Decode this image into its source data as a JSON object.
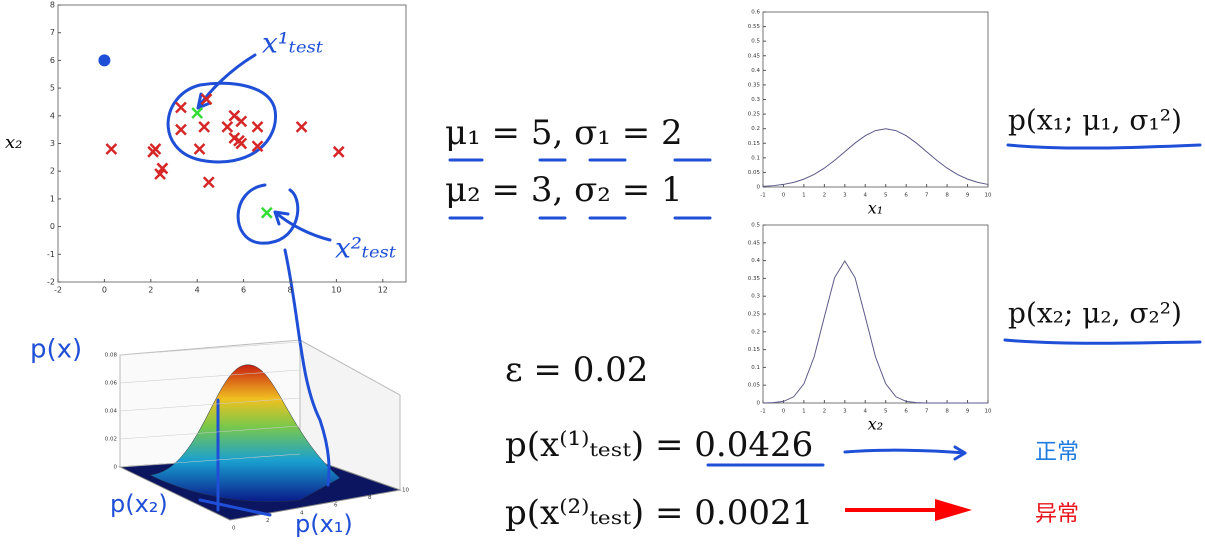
{
  "chart_data": [
    {
      "type": "scatter",
      "ylabel": "x₂",
      "xlim": [
        -2,
        13
      ],
      "ylim": [
        -2,
        8
      ],
      "xticks": [
        -2,
        0,
        2,
        4,
        6,
        8,
        10,
        12
      ],
      "yticks": [
        -2,
        -1,
        0,
        1,
        2,
        3,
        4,
        5,
        6,
        7,
        8
      ],
      "series": [
        {
          "color": "#d62728",
          "marker": "x",
          "x": [
            3.3,
            4.4,
            3.3,
            4.3,
            5.3,
            5.6,
            5.9,
            6.6,
            5.6,
            5.8,
            6.6,
            5.9,
            4.1,
            2.1,
            2.2,
            2.5,
            2.4,
            4.5,
            0.3,
            8.5,
            10.1
          ],
          "y": [
            4.3,
            4.6,
            3.5,
            3.6,
            3.6,
            4.0,
            3.8,
            3.6,
            3.2,
            3.1,
            2.9,
            3.0,
            2.8,
            2.7,
            2.8,
            2.1,
            1.9,
            1.6,
            2.8,
            3.6,
            2.7
          ]
        },
        {
          "color": "#33dd33",
          "marker": "x",
          "x": [
            4,
            7
          ],
          "y": [
            4.1,
            0.5
          ]
        },
        {
          "color": "#1f4fd6",
          "marker": "dot",
          "x": [
            0
          ],
          "y": [
            6
          ]
        }
      ],
      "annotations": [
        "x¹ₜₑₛₜ",
        "x²ₜₑₛₜ"
      ]
    },
    {
      "type": "line",
      "xlabel": "x₁",
      "xlim": [
        -1,
        10
      ],
      "ylim": [
        0,
        0.6
      ],
      "xticks": [
        -1,
        0,
        1,
        2,
        3,
        4,
        5,
        6,
        7,
        8,
        9,
        10
      ],
      "yticks": [
        0,
        0.05,
        0.1,
        0.15,
        0.2,
        0.25,
        0.3,
        0.35,
        0.4,
        0.45,
        0.5,
        0.55,
        0.6
      ],
      "x": [
        -1,
        -0.5,
        0,
        0.5,
        1,
        1.5,
        2,
        2.5,
        3,
        3.5,
        4,
        4.5,
        5,
        5.5,
        6,
        6.5,
        7,
        7.5,
        8,
        8.5,
        9,
        9.5,
        10
      ],
      "series": [
        {
          "color": "#5a5a8a",
          "values": [
            0.0022,
            0.0045,
            0.0088,
            0.0159,
            0.027,
            0.0431,
            0.0648,
            0.0913,
            0.121,
            0.1506,
            0.176,
            0.1934,
            0.1995,
            0.1934,
            0.176,
            0.1506,
            0.121,
            0.0913,
            0.0648,
            0.0431,
            0.027,
            0.0159,
            0.0088
          ]
        }
      ],
      "label": "p(x₁; μ₁, σ₁²)"
    },
    {
      "type": "line",
      "xlabel": "x₂",
      "xlim": [
        -1,
        10
      ],
      "ylim": [
        0,
        0.5
      ],
      "xticks": [
        -1,
        0,
        1,
        2,
        3,
        4,
        5,
        6,
        7,
        8,
        9,
        10
      ],
      "yticks": [
        0,
        0.05,
        0.1,
        0.15,
        0.2,
        0.25,
        0.3,
        0.35,
        0.4,
        0.45,
        0.5
      ],
      "x": [
        -1,
        -0.5,
        0,
        0.5,
        1,
        1.5,
        2,
        2.5,
        3,
        3.5,
        4,
        4.5,
        5,
        5.5,
        6,
        6.5,
        7,
        7.5,
        8,
        8.5,
        9,
        9.5,
        10
      ],
      "series": [
        {
          "color": "#5a5a8a",
          "values": [
            0.0001,
            0.0009,
            0.0044,
            0.0175,
            0.054,
            0.1295,
            0.242,
            0.3521,
            0.3989,
            0.3521,
            0.242,
            0.1295,
            0.054,
            0.0175,
            0.0044,
            0.0009,
            0.0001,
            0,
            0,
            0,
            0,
            0,
            0
          ]
        }
      ],
      "label": "p(x₂; μ₂, σ₂²)"
    },
    {
      "type": "surface",
      "zlim": [
        0,
        0.08
      ],
      "zticks": [
        0,
        0.02,
        0.04,
        0.06,
        0.08
      ],
      "xticks": [
        0,
        2,
        4,
        6,
        8,
        10
      ],
      "annotations": [
        "p(x)",
        "p(x₁)",
        "p(x₂)"
      ]
    }
  ],
  "formulas": {
    "params": [
      "μ₁ = 5, σ₁ = 2",
      "μ₂ = 3, σ₂ = 1"
    ],
    "epsilon": "ε = 0.02",
    "tests": [
      "p(x⁽¹⁾ₜₑₛₜ) = 0.0426",
      "p(x⁽²⁾ₜₑₛₜ) = 0.0021"
    ],
    "results": [
      {
        "text": "正常",
        "color": "#1e7be0"
      },
      {
        "text": "异常",
        "color": "#e8141c"
      }
    ]
  }
}
